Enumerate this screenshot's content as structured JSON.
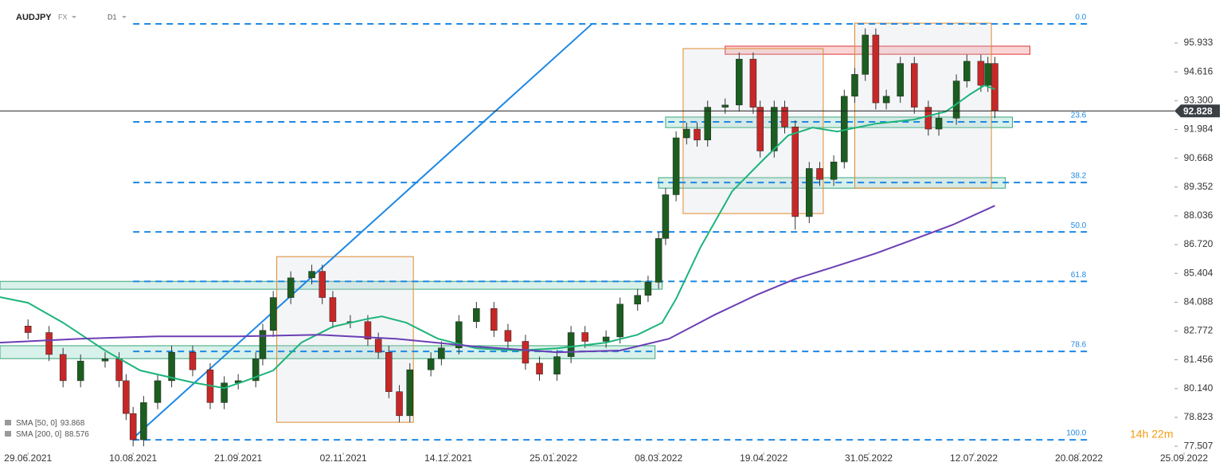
{
  "chart_data": {
    "type": "candlestick",
    "symbol": "AUDJPY",
    "market": "FX",
    "interval": "D1",
    "countdown": "14h 22m",
    "ylim": [
      77.22,
      97.9
    ],
    "yticks": [
      95.933,
      94.616,
      {
        "value": 93.3,
        "label": "93.300"
      },
      91.984,
      90.668,
      89.352,
      88.036,
      {
        "value": 86.72,
        "label": "86.720"
      },
      85.404,
      84.088,
      82.772,
      81.456,
      {
        "value": 80.14,
        "label": "80.140"
      },
      78.823,
      77.507
    ],
    "xlim": [
      -8,
      343.4
    ],
    "xticks": [
      {
        "value": 0,
        "label": "29.06.2021"
      },
      {
        "value": 30,
        "label": "10.08.2021"
      },
      {
        "value": 60,
        "label": "21.09.2021"
      },
      {
        "value": 90,
        "label": "02.11.2021"
      },
      {
        "value": 120,
        "label": "14.12.2021"
      },
      {
        "value": 150,
        "label": "25.01.2022"
      },
      {
        "value": 180,
        "label": "08.03.2022"
      },
      {
        "value": 210,
        "label": "19.04.2022"
      },
      {
        "value": 240,
        "label": "31.05.2022"
      },
      {
        "value": 270,
        "label": "12.07.2022"
      },
      {
        "value": 300,
        "label": "20.08.2022"
      },
      {
        "value": 330,
        "label": "25.09.2022"
      }
    ],
    "bull_color": "#1b5e20",
    "bear_color": "#c62828",
    "last_price": 92.828,
    "candles": {
      "x": [
        0,
        6,
        10,
        15,
        22,
        26,
        28,
        30,
        33,
        37,
        41,
        47,
        52,
        56,
        60,
        65,
        67,
        70,
        75,
        81,
        84,
        87,
        92,
        97,
        100,
        103,
        106,
        109,
        115,
        118,
        123,
        128,
        133,
        137,
        142,
        146,
        151,
        155,
        159,
        165,
        169,
        174,
        177,
        180,
        182,
        185,
        188,
        191,
        194,
        199,
        203,
        207,
        209,
        213,
        216,
        219,
        223,
        226,
        230,
        233,
        236,
        239,
        242,
        245,
        249,
        253,
        257,
        260,
        265,
        268,
        272,
        274,
        276
      ],
      "open": [
        83.0,
        82.7,
        81.7,
        80.5,
        81.4,
        81.5,
        80.5,
        79.0,
        77.8,
        79.5,
        80.5,
        81.8,
        81.0,
        79.5,
        80.4,
        80.5,
        81.5,
        82.8,
        84.3,
        85.2,
        85.5,
        84.3,
        83.2,
        83.2,
        82.4,
        81.8,
        80.0,
        78.9,
        81.0,
        81.5,
        82.0,
        83.2,
        83.8,
        82.8,
        82.3,
        81.3,
        80.8,
        81.6,
        82.7,
        82.3,
        82.5,
        84.0,
        84.4,
        85.0,
        87.0,
        89.0,
        91.6,
        92.0,
        91.5,
        93.0,
        93.1,
        95.2,
        93.0,
        91.0,
        93.0,
        92.1,
        88.0,
        90.2,
        89.7,
        90.5,
        93.5,
        94.5,
        96.3,
        93.2,
        93.5,
        95.0,
        93.0,
        92.0,
        92.5,
        94.2,
        95.1,
        94.0,
        95.0
      ],
      "high": [
        83.3,
        83.0,
        82.0,
        81.7,
        81.8,
        81.8,
        80.8,
        79.3,
        79.8,
        80.8,
        82.1,
        82.1,
        81.3,
        80.7,
        80.8,
        81.8,
        83.1,
        84.6,
        85.5,
        85.8,
        85.8,
        84.6,
        83.5,
        83.5,
        82.7,
        82.1,
        80.3,
        81.3,
        81.8,
        82.3,
        83.5,
        84.1,
        84.1,
        83.1,
        82.6,
        81.6,
        81.9,
        83.0,
        83.0,
        82.8,
        84.3,
        84.7,
        85.3,
        87.3,
        89.3,
        91.9,
        92.3,
        92.3,
        93.3,
        93.4,
        95.5,
        95.5,
        93.3,
        93.3,
        93.3,
        92.4,
        90.5,
        90.5,
        90.8,
        93.8,
        94.8,
        96.6,
        96.6,
        93.8,
        95.3,
        95.3,
        93.3,
        92.8,
        94.5,
        95.4,
        95.4,
        95.3,
        95.3
      ],
      "low": [
        82.4,
        81.4,
        80.2,
        80.2,
        81.1,
        80.2,
        78.7,
        77.5,
        77.5,
        79.2,
        80.2,
        80.7,
        79.2,
        79.2,
        80.1,
        80.2,
        81.2,
        82.5,
        84.0,
        84.9,
        84.0,
        82.9,
        82.9,
        82.1,
        81.5,
        79.7,
        78.6,
        78.6,
        80.7,
        81.2,
        81.7,
        82.9,
        82.5,
        82.0,
        81.0,
        80.5,
        80.5,
        81.3,
        82.0,
        82.0,
        82.2,
        83.7,
        84.1,
        84.7,
        86.7,
        88.7,
        91.3,
        91.2,
        91.2,
        92.7,
        92.8,
        92.7,
        90.7,
        90.7,
        91.8,
        87.4,
        87.7,
        89.4,
        89.4,
        90.2,
        93.2,
        94.2,
        92.9,
        92.9,
        93.2,
        92.7,
        91.7,
        91.7,
        92.2,
        93.9,
        93.7,
        93.7,
        92.5
      ],
      "close": [
        82.7,
        81.7,
        80.5,
        81.4,
        81.5,
        80.5,
        79.0,
        77.8,
        79.5,
        80.5,
        81.8,
        81.0,
        79.5,
        80.4,
        80.5,
        81.5,
        82.8,
        84.3,
        85.2,
        85.5,
        84.3,
        83.2,
        83.2,
        82.4,
        81.8,
        80.0,
        78.9,
        81.0,
        81.5,
        82.0,
        83.2,
        83.8,
        82.8,
        82.3,
        81.3,
        80.8,
        81.6,
        82.7,
        82.3,
        82.5,
        84.0,
        84.4,
        85.0,
        87.0,
        89.0,
        91.6,
        92.0,
        91.5,
        93.0,
        93.1,
        95.2,
        93.0,
        91.0,
        93.0,
        92.1,
        88.0,
        90.2,
        89.7,
        90.5,
        93.5,
        94.5,
        96.3,
        93.2,
        93.5,
        95.0,
        93.0,
        92.0,
        92.5,
        94.2,
        95.1,
        94.0,
        95.0,
        92.83
      ]
    },
    "series": [
      {
        "name": "SMA [50, 0]",
        "last": 93.868,
        "color": "#1db47a",
        "x": [
          -8,
          0,
          10,
          22,
          32,
          47,
          56,
          62,
          70,
          78,
          87,
          97,
          101,
          108,
          117,
          128,
          140,
          151,
          165,
          174,
          181,
          185,
          192,
          201,
          210,
          217,
          224,
          231,
          242,
          253,
          262,
          269,
          273,
          276
        ],
        "values": [
          84.32,
          84.06,
          83.15,
          81.88,
          80.97,
          80.42,
          80.16,
          80.49,
          80.97,
          82.24,
          82.97,
          83.33,
          83.44,
          83.15,
          82.42,
          81.98,
          81.88,
          81.98,
          82.24,
          82.6,
          83.15,
          84.24,
          86.61,
          89.16,
          90.62,
          91.71,
          92.07,
          91.89,
          92.25,
          92.44,
          92.8,
          93.6,
          94.0,
          93.82
        ]
      },
      {
        "name": "SMA [200, 0]",
        "last": 88.576,
        "color": "#6a3fb5",
        "x": [
          -8,
          15,
          37,
          60,
          83,
          105,
          128,
          151,
          169,
          183,
          196,
          208,
          219,
          230,
          242,
          253,
          264,
          276
        ],
        "values": [
          82.24,
          82.42,
          82.53,
          82.53,
          82.6,
          82.42,
          82.06,
          81.8,
          81.88,
          82.42,
          83.51,
          84.42,
          85.15,
          85.7,
          86.32,
          86.97,
          87.63,
          88.5
        ]
      }
    ],
    "trendline": {
      "x": [
        30,
        161
      ],
      "values": [
        77.87,
        96.81
      ],
      "color": "#1e88e5"
    },
    "fib_color": "#1e88e5",
    "fib_x": [
      30,
      303
    ],
    "fib_levels": [
      {
        "ratio": {
          "value": 0,
          "label": "0.0"
        },
        "price": 96.81
      },
      {
        "ratio": 23.6,
        "price": 92.33
      },
      {
        "ratio": 38.2,
        "price": 89.56
      },
      {
        "ratio": {
          "value": 50,
          "label": "50.0"
        },
        "price": 87.3
      },
      {
        "ratio": 61.8,
        "price": 85.04
      },
      {
        "ratio": 78.6,
        "price": 81.84
      },
      {
        "ratio": {
          "value": 100,
          "label": "100.0"
        },
        "price": 77.8
      }
    ],
    "zones": [
      {
        "kind": "support",
        "x": [
          -8,
          181
        ],
        "prices": [
          85.04,
          84.68
        ]
      },
      {
        "kind": "support",
        "x": [
          -8,
          179
        ],
        "prices": [
          82.1,
          81.51
        ]
      },
      {
        "kind": "support",
        "x": [
          182,
          281
        ],
        "prices": [
          92.55,
          92.07
        ]
      },
      {
        "kind": "support",
        "x": [
          180,
          279
        ],
        "prices": [
          89.78,
          89.3
        ]
      },
      {
        "kind": "resistance",
        "x": [
          199,
          286
        ],
        "prices": [
          95.79,
          95.42
        ]
      },
      {
        "kind": "range",
        "x": [
          71,
          110
        ],
        "prices": [
          86.17,
          78.6
        ]
      },
      {
        "kind": "range",
        "x": [
          187,
          227
        ],
        "prices": [
          95.68,
          88.14
        ]
      },
      {
        "kind": "range",
        "x": [
          236,
          275
        ],
        "prices": [
          96.84,
          89.3
        ]
      }
    ]
  }
}
